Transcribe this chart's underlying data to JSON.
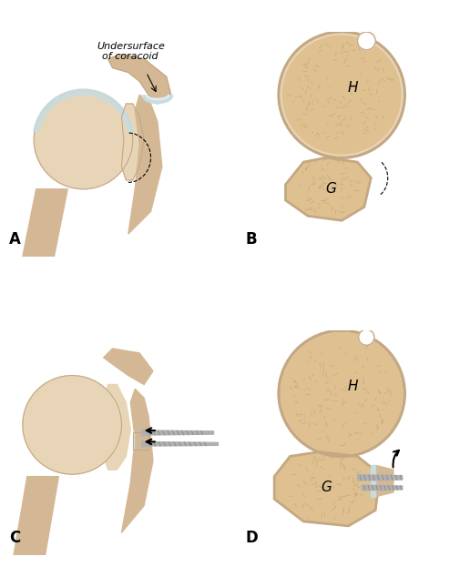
{
  "background_color": "#ffffff",
  "label_A": "A",
  "label_B": "B",
  "label_C": "C",
  "label_D": "D",
  "label_H_top": "H",
  "label_H_bottom": "H",
  "label_G_top": "G",
  "label_G_bottom": "G",
  "annotation_text": "Undersurface\nof coracoid",
  "bone_fill": "#d4b896",
  "bone_light": "#e8d5b8",
  "bone_darker": "#c4a882",
  "bone_shadow": "#b89870",
  "cartilage_color": "#c8dce0",
  "cartilage_light": "#ddeef2",
  "glenoid_fill": "#d4b896",
  "spongy_color": "#c8a878",
  "spongy_light": "#dfc090",
  "cortical_color": "#e8d5b8",
  "screw_color": "#b0b0b0",
  "screw_dark": "#808080",
  "arrow_color": "#111111",
  "label_fontsize": 11,
  "annotation_fontsize": 8,
  "panel_label_fontsize": 12
}
